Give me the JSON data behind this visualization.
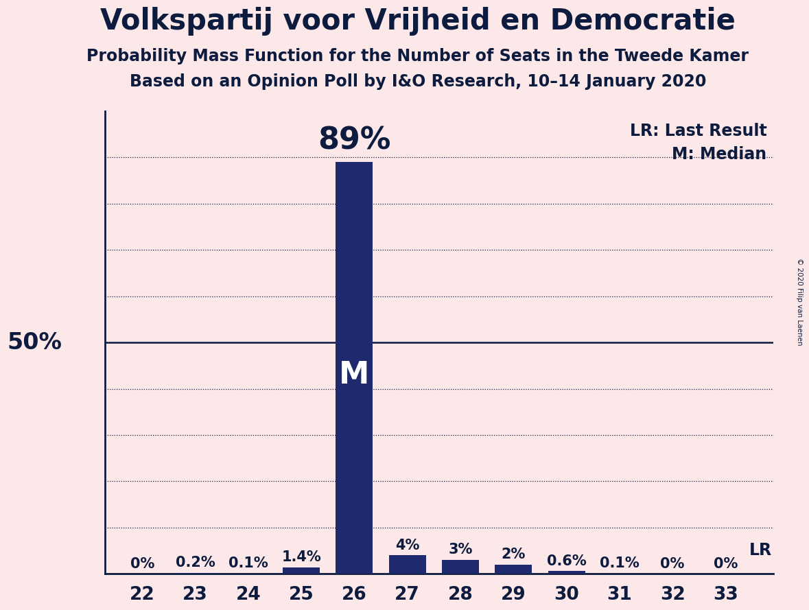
{
  "title": "Volkspartij voor Vrijheid en Democratie",
  "subtitle1": "Probability Mass Function for the Number of Seats in the Tweede Kamer",
  "subtitle2": "Based on an Opinion Poll by I&O Research, 10–14 January 2020",
  "copyright": "© 2020 Filip van Laenen",
  "seats": [
    22,
    23,
    24,
    25,
    26,
    27,
    28,
    29,
    30,
    31,
    32,
    33
  ],
  "probabilities": [
    0.0,
    0.2,
    0.1,
    1.4,
    89.0,
    4.0,
    3.0,
    2.0,
    0.6,
    0.1,
    0.0,
    0.0
  ],
  "bar_color": "#1f2a6e",
  "background_color": "#fce8e8",
  "median_seat": 26,
  "last_result_seat": 33,
  "last_result_value": 5.2,
  "ylim": [
    0,
    100
  ],
  "ylabel_50_text": "50%",
  "legend_lr": "LR: Last Result",
  "legend_m": "M: Median",
  "grid_positions": [
    10,
    20,
    30,
    40,
    50,
    60,
    70,
    80,
    90
  ],
  "title_fontsize": 30,
  "subtitle_fontsize": 17,
  "bar_label_fontsize": 15,
  "axis_label_fontsize": 19,
  "legend_fontsize": 17,
  "ylabel_fontsize": 24,
  "median_label_fontsize": 32,
  "text_color": "#0d1b3e"
}
